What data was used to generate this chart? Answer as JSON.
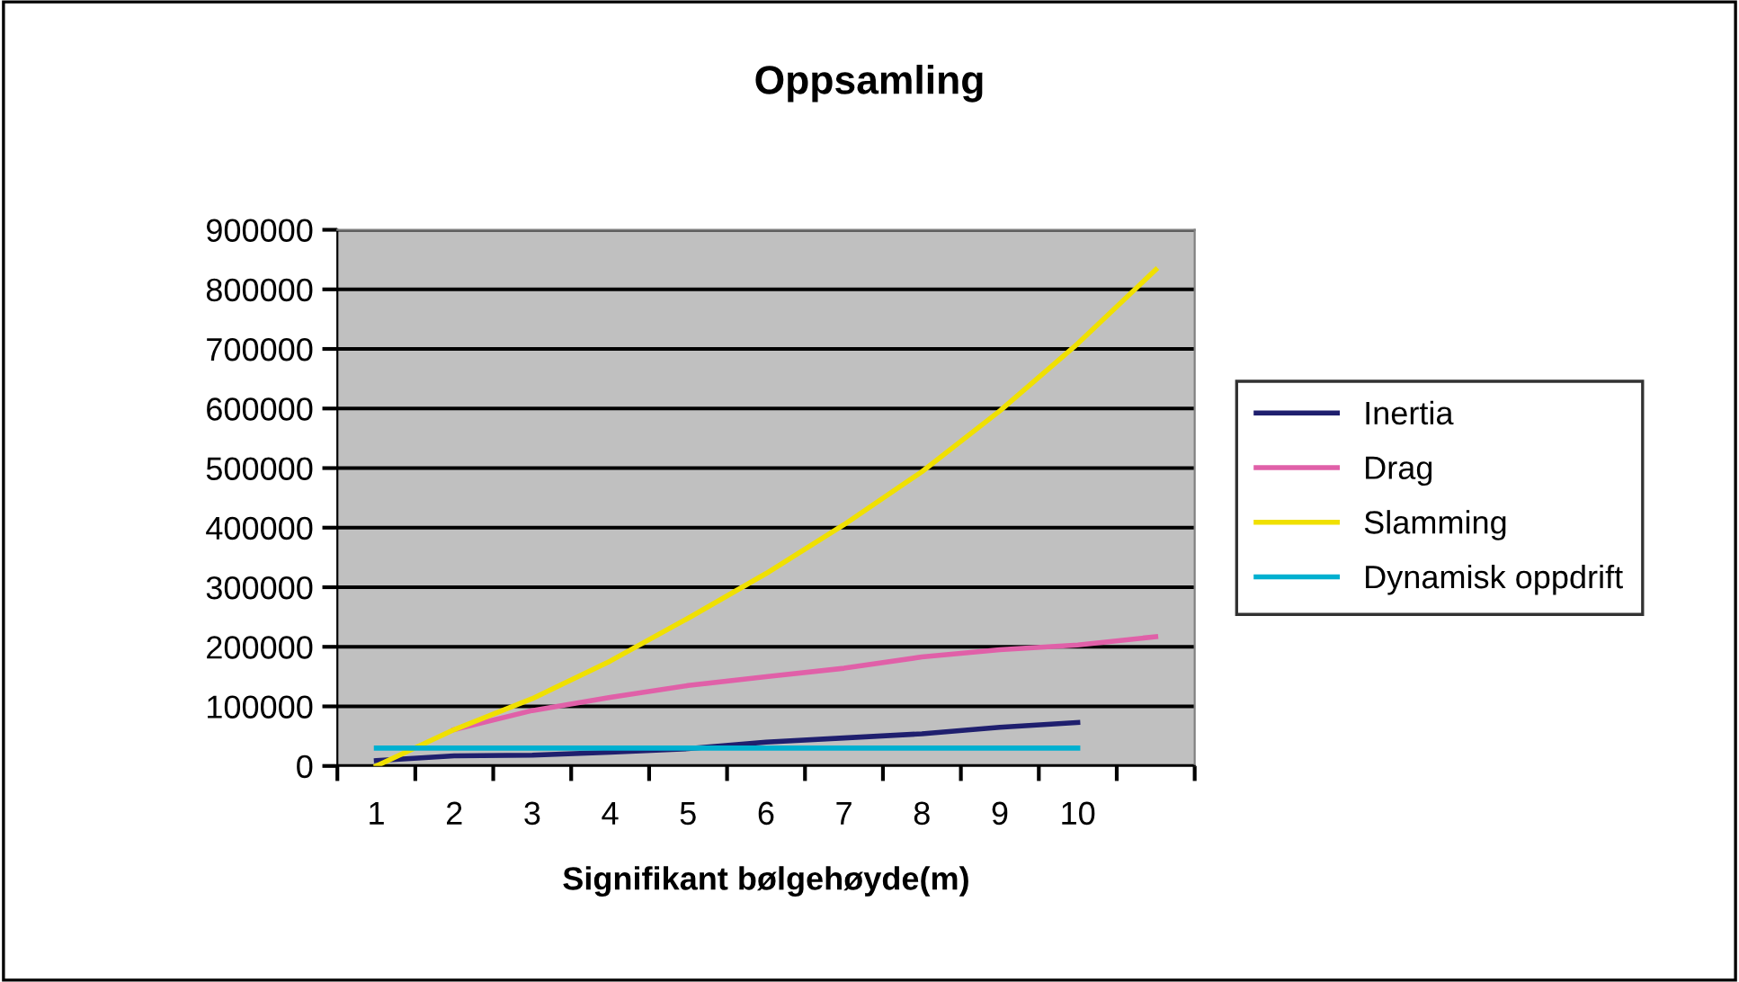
{
  "chart_data": {
    "type": "line",
    "title": "Oppsamling",
    "xlabel": "Signifikant bølgehøyde(m)",
    "categories": [
      "1",
      "2",
      "3",
      "4",
      "5",
      "6",
      "7",
      "8",
      "9",
      "10",
      null
    ],
    "series": [
      {
        "name": "Inertia",
        "color": "#1f1f6e",
        "values": [
          9000,
          17000,
          18000,
          23000,
          29000,
          40000,
          47000,
          54000,
          65000,
          73000,
          null
        ]
      },
      {
        "name": "Drag",
        "color": "#e060a8",
        "values": [
          null,
          61000,
          93000,
          115000,
          135000,
          150000,
          164000,
          183000,
          195000,
          203000,
          217000
        ]
      },
      {
        "name": "Slamming",
        "color": "#f0e000",
        "values": [
          0,
          61000,
          113000,
          176000,
          248000,
          323000,
          405000,
          494000,
          596000,
          709000,
          833000
        ]
      },
      {
        "name": "Dynamisk oppdrift",
        "color": "#00b0d0",
        "values": [
          30000,
          30000,
          30000,
          30000,
          30000,
          30000,
          30000,
          30000,
          30000,
          30000,
          null
        ]
      }
    ],
    "ylim": [
      0,
      900000
    ],
    "yticks": [
      0,
      100000,
      200000,
      300000,
      400000,
      500000,
      600000,
      700000,
      800000,
      900000
    ],
    "grid": "y",
    "legend": "right",
    "marker": "none",
    "line_style": "solid"
  }
}
